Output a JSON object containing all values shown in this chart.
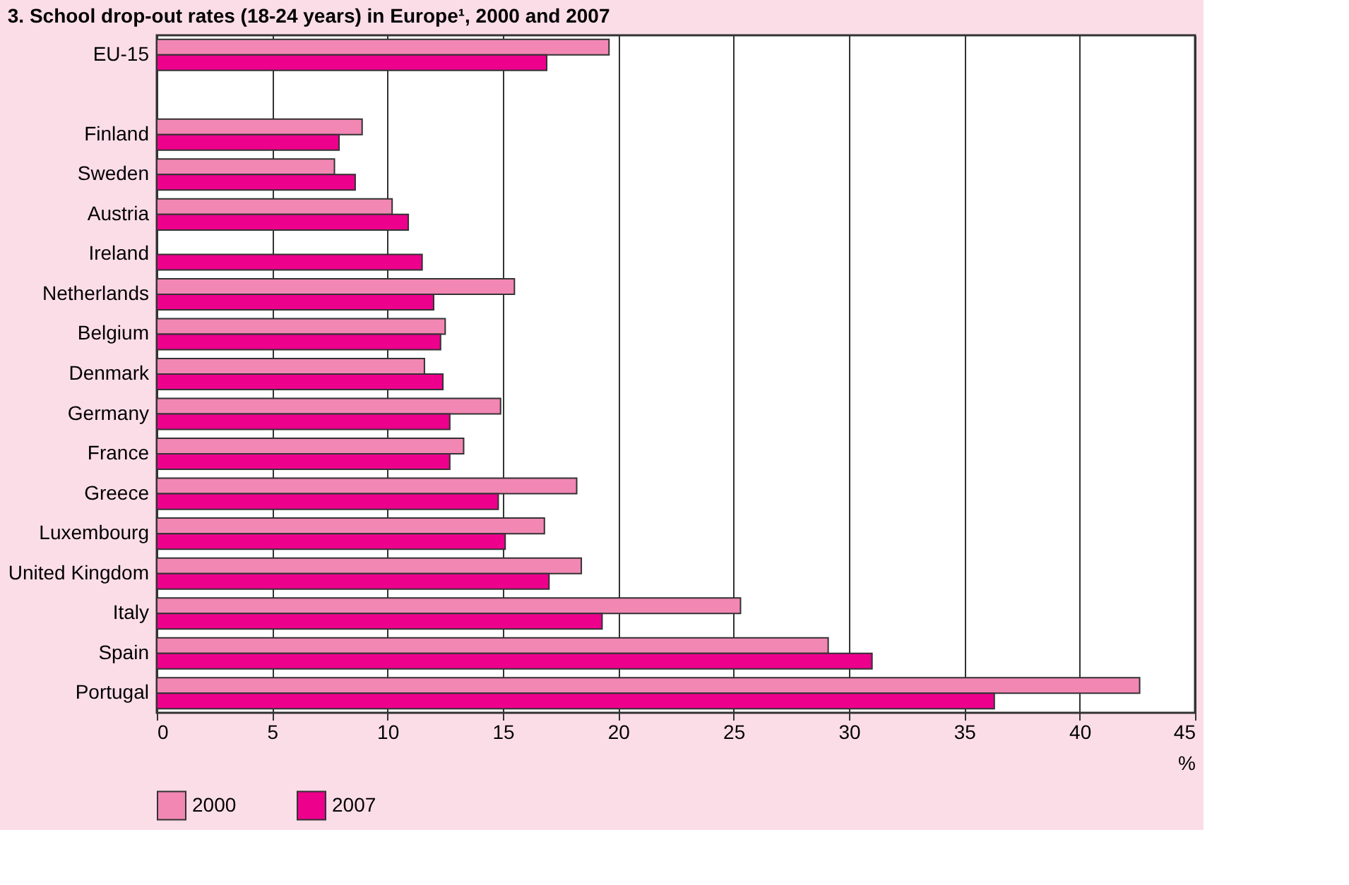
{
  "chart_data": {
    "type": "bar",
    "orientation": "horizontal",
    "title": "3. School drop-out rates (18-24 years) in Europe¹, 2000 and 2007",
    "categories": [
      "EU-15",
      null,
      "Finland",
      "Sweden",
      "Austria",
      "Ireland",
      "Netherlands",
      "Belgium",
      "Denmark",
      "Germany",
      "France",
      "Greece",
      "Luxembourg",
      "United Kingdom",
      "Italy",
      "Spain",
      "Portugal"
    ],
    "series": [
      {
        "name": "2000",
        "color": "#f287b4",
        "values": [
          19.6,
          null,
          8.9,
          7.7,
          10.2,
          null,
          15.5,
          12.5,
          11.6,
          14.9,
          13.3,
          18.2,
          16.8,
          18.4,
          25.3,
          29.1,
          42.6
        ]
      },
      {
        "name": "2007",
        "color": "#ec008c",
        "values": [
          16.9,
          null,
          7.9,
          8.6,
          10.9,
          11.5,
          12.0,
          12.3,
          12.4,
          12.7,
          12.7,
          14.8,
          15.1,
          17.0,
          19.3,
          31.0,
          36.3
        ]
      }
    ],
    "xlabel": "%",
    "xlim": [
      0,
      45
    ],
    "xticks": [
      0,
      5,
      10,
      15,
      20,
      25,
      30,
      35,
      40,
      45
    ],
    "grid": "x",
    "legend": "bottom left"
  }
}
